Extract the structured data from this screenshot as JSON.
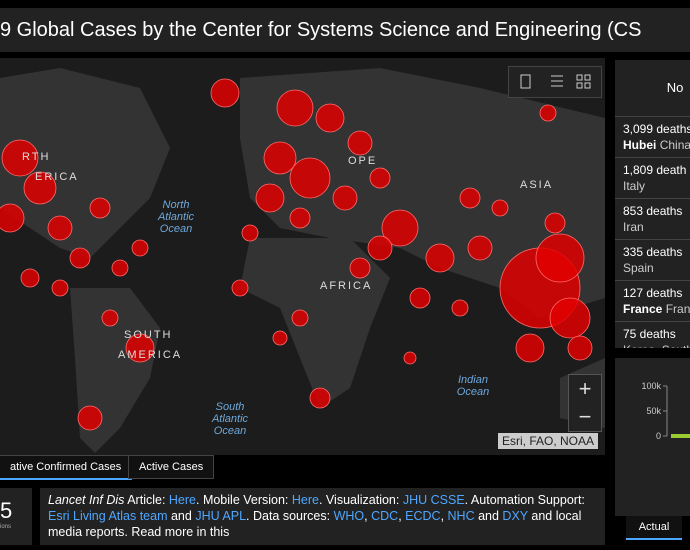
{
  "header": {
    "title": "9 Global Cases by the Center for Systems Science and Engineering (CS"
  },
  "map": {
    "labels": [
      "RTH",
      "ERICA",
      "OPE",
      "ASIA",
      "AFRICA",
      "SOUTH",
      "AMERICA"
    ],
    "oceans": [
      [
        "North",
        "Atlantic",
        "Ocean"
      ],
      [
        "South",
        "Atlantic",
        "Ocean"
      ],
      [
        "Indian",
        "Ocean"
      ]
    ],
    "attribution": "Esri, FAO, NOAA",
    "zoom_in": "+",
    "zoom_out": "−"
  },
  "tabs": [
    "ative Confirmed Cases",
    "Active Cases"
  ],
  "counter": {
    "value": "5",
    "caption": "ions"
  },
  "info": [
    {
      "text": "Lancet Inf Dis",
      "style": "italic"
    },
    {
      "text": " Article: "
    },
    {
      "text": "Here",
      "style": "link"
    },
    {
      "text": ". Mobile Version: "
    },
    {
      "text": "Here",
      "style": "link"
    },
    {
      "text": ". Visualization: "
    },
    {
      "text": "JHU CSSE",
      "style": "link"
    },
    {
      "text": ". Automation Support: "
    },
    {
      "text": "Esri Living Atlas team",
      "style": "link"
    },
    {
      "text": " and "
    },
    {
      "text": "JHU APL",
      "style": "link"
    },
    {
      "text": ". Data sources: "
    },
    {
      "text": "WHO",
      "style": "link"
    },
    {
      "text": ", "
    },
    {
      "text": "CDC",
      "style": "link"
    },
    {
      "text": ", "
    },
    {
      "text": "ECDC",
      "style": "link"
    },
    {
      "text": ", "
    },
    {
      "text": "NHC",
      "style": "link"
    },
    {
      "text": " and "
    },
    {
      "text": "DXY",
      "style": "link"
    },
    {
      "text": " and local media reports. Read more in this"
    }
  ],
  "deaths_panel": {
    "header": "No",
    "items": [
      {
        "count": "3,099 deaths",
        "bold": "Hubei",
        "place": "China"
      },
      {
        "count": "1,809 death",
        "place": "Italy"
      },
      {
        "count": "853 deaths",
        "place": "Iran"
      },
      {
        "count": "335 deaths",
        "place": "Spain"
      },
      {
        "count": "127 deaths",
        "bold": "France",
        "place": "France"
      },
      {
        "count": "75 deaths",
        "place": "Korea, South"
      }
    ]
  },
  "chart": {
    "yticks": [
      {
        "value": 100000,
        "label": "100k"
      },
      {
        "value": 50000,
        "label": "50k"
      },
      0
    ],
    "ylim": [
      0,
      100000
    ],
    "tab": "Actual"
  }
}
